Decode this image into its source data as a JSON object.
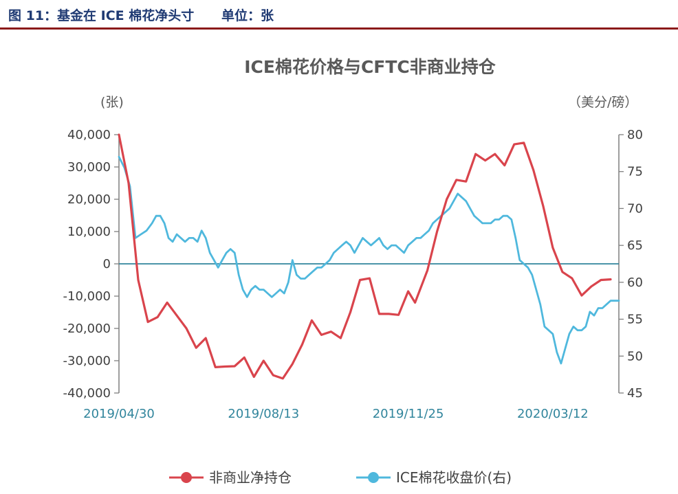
{
  "header": {
    "figure_label": "图 11：基金在 ICE 棉花净头寸",
    "unit_label": "单位：张"
  },
  "colors": {
    "red_series": "#d9444c",
    "blue_series": "#4fb8dd",
    "zero_line": "#31859c",
    "header_rule": "#8b1a1a"
  },
  "chart_data": {
    "type": "line",
    "title": "ICE棉花价格与CFTC非商业持仓",
    "y_left_unit": "(张)",
    "y_right_unit": "（美分/磅）",
    "y_left_ticks": [
      "40,000",
      "30,000",
      "20,000",
      "10,000",
      "0",
      "-10,000",
      "-20,000",
      "-30,000",
      "-40,000"
    ],
    "y_right_ticks": [
      "80",
      "75",
      "70",
      "65",
      "60",
      "55",
      "50",
      "45"
    ],
    "x_tick_labels": [
      "2019/04/30",
      "2019/08/13",
      "2019/11/25",
      "2020/03/12"
    ],
    "x_tick_positions": [
      0,
      105,
      210,
      315
    ],
    "x_range": [
      0,
      363
    ],
    "ylim_left": [
      -40000,
      40000
    ],
    "ylim_right": [
      45,
      80
    ],
    "grid": false,
    "legend_position": "bottom-center",
    "series": [
      {
        "name": "非商业净持仓",
        "axis": "left",
        "points": [
          [
            0,
            40000
          ],
          [
            7,
            25000
          ],
          [
            14,
            -5000
          ],
          [
            21,
            -18000
          ],
          [
            28,
            -16500
          ],
          [
            35,
            -12000
          ],
          [
            42,
            -16000
          ],
          [
            49,
            -20000
          ],
          [
            56,
            -26000
          ],
          [
            63,
            -23000
          ],
          [
            70,
            -32000
          ],
          [
            77,
            -31800
          ],
          [
            84,
            -31700
          ],
          [
            91,
            -29000
          ],
          [
            98,
            -35000
          ],
          [
            105,
            -30000
          ],
          [
            112,
            -34500
          ],
          [
            119,
            -35500
          ],
          [
            126,
            -31000
          ],
          [
            133,
            -25000
          ],
          [
            140,
            -17500
          ],
          [
            147,
            -22000
          ],
          [
            154,
            -21000
          ],
          [
            161,
            -23000
          ],
          [
            168,
            -15000
          ],
          [
            175,
            -5000
          ],
          [
            182,
            -4500
          ],
          [
            189,
            -15500
          ],
          [
            196,
            -15500
          ],
          [
            203,
            -15800
          ],
          [
            210,
            -8500
          ],
          [
            215,
            -12000
          ],
          [
            224,
            -2000
          ],
          [
            231,
            10000
          ],
          [
            238,
            20000
          ],
          [
            245,
            26000
          ],
          [
            252,
            25500
          ],
          [
            259,
            34000
          ],
          [
            266,
            32000
          ],
          [
            273,
            34000
          ],
          [
            280,
            30500
          ],
          [
            287,
            37000
          ],
          [
            294,
            37500
          ],
          [
            301,
            29000
          ],
          [
            308,
            18000
          ],
          [
            315,
            5000
          ],
          [
            322,
            -2500
          ],
          [
            329,
            -4500
          ],
          [
            336,
            -9800
          ],
          [
            343,
            -7000
          ],
          [
            350,
            -5000
          ],
          [
            357,
            -4800
          ]
        ]
      },
      {
        "name": "ICE棉花收盘价(右)",
        "axis": "right",
        "points": [
          [
            0,
            77
          ],
          [
            4,
            75.5
          ],
          [
            8,
            73
          ],
          [
            12,
            66
          ],
          [
            16,
            66.5
          ],
          [
            20,
            67
          ],
          [
            24,
            68
          ],
          [
            27,
            69
          ],
          [
            30,
            69
          ],
          [
            33,
            68
          ],
          [
            36,
            66
          ],
          [
            39,
            65.5
          ],
          [
            42,
            66.5
          ],
          [
            45,
            66
          ],
          [
            48,
            65.5
          ],
          [
            51,
            66
          ],
          [
            54,
            66
          ],
          [
            57,
            65.5
          ],
          [
            60,
            67
          ],
          [
            63,
            66
          ],
          [
            66,
            64
          ],
          [
            69,
            63
          ],
          [
            72,
            62
          ],
          [
            75,
            63
          ],
          [
            78,
            64
          ],
          [
            81,
            64.5
          ],
          [
            84,
            64
          ],
          [
            87,
            61
          ],
          [
            90,
            59
          ],
          [
            93,
            58
          ],
          [
            96,
            59
          ],
          [
            99,
            59.5
          ],
          [
            102,
            59
          ],
          [
            105,
            59
          ],
          [
            108,
            58.5
          ],
          [
            111,
            58
          ],
          [
            114,
            58.5
          ],
          [
            117,
            59
          ],
          [
            120,
            58.5
          ],
          [
            123,
            60
          ],
          [
            126,
            63
          ],
          [
            129,
            61
          ],
          [
            132,
            60.5
          ],
          [
            135,
            60.5
          ],
          [
            138,
            61
          ],
          [
            141,
            61.5
          ],
          [
            144,
            62
          ],
          [
            147,
            62
          ],
          [
            150,
            62.5
          ],
          [
            153,
            63
          ],
          [
            156,
            64
          ],
          [
            159,
            64.5
          ],
          [
            162,
            65
          ],
          [
            165,
            65.5
          ],
          [
            168,
            65
          ],
          [
            171,
            64
          ],
          [
            174,
            65
          ],
          [
            177,
            66
          ],
          [
            180,
            65.5
          ],
          [
            183,
            65
          ],
          [
            186,
            65.5
          ],
          [
            189,
            66
          ],
          [
            192,
            65
          ],
          [
            195,
            64.5
          ],
          [
            198,
            65
          ],
          [
            201,
            65
          ],
          [
            204,
            64.5
          ],
          [
            207,
            64
          ],
          [
            210,
            65
          ],
          [
            213,
            65.5
          ],
          [
            216,
            66
          ],
          [
            219,
            66
          ],
          [
            222,
            66.5
          ],
          [
            225,
            67
          ],
          [
            228,
            68
          ],
          [
            231,
            68.5
          ],
          [
            234,
            69
          ],
          [
            237,
            69.5
          ],
          [
            240,
            70
          ],
          [
            243,
            71
          ],
          [
            246,
            72
          ],
          [
            249,
            71.5
          ],
          [
            252,
            71
          ],
          [
            255,
            70
          ],
          [
            258,
            69
          ],
          [
            261,
            68.5
          ],
          [
            264,
            68
          ],
          [
            267,
            68
          ],
          [
            270,
            68
          ],
          [
            273,
            68.5
          ],
          [
            276,
            68.5
          ],
          [
            279,
            69
          ],
          [
            282,
            69
          ],
          [
            285,
            68.5
          ],
          [
            288,
            66
          ],
          [
            291,
            63
          ],
          [
            294,
            62.5
          ],
          [
            297,
            62
          ],
          [
            300,
            61
          ],
          [
            303,
            59
          ],
          [
            306,
            57
          ],
          [
            309,
            54
          ],
          [
            312,
            53.5
          ],
          [
            315,
            53
          ],
          [
            318,
            50.5
          ],
          [
            321,
            49
          ],
          [
            324,
            51
          ],
          [
            327,
            53
          ],
          [
            330,
            54
          ],
          [
            333,
            53.5
          ],
          [
            336,
            53.5
          ],
          [
            339,
            54
          ],
          [
            342,
            56
          ],
          [
            345,
            55.5
          ],
          [
            348,
            56.5
          ],
          [
            351,
            56.5
          ],
          [
            354,
            57
          ],
          [
            357,
            57.5
          ],
          [
            360,
            57.5
          ],
          [
            363,
            57.5
          ]
        ]
      }
    ]
  },
  "legend": [
    {
      "label": "非商业净持仓"
    },
    {
      "label": "ICE棉花收盘价(右)"
    }
  ]
}
